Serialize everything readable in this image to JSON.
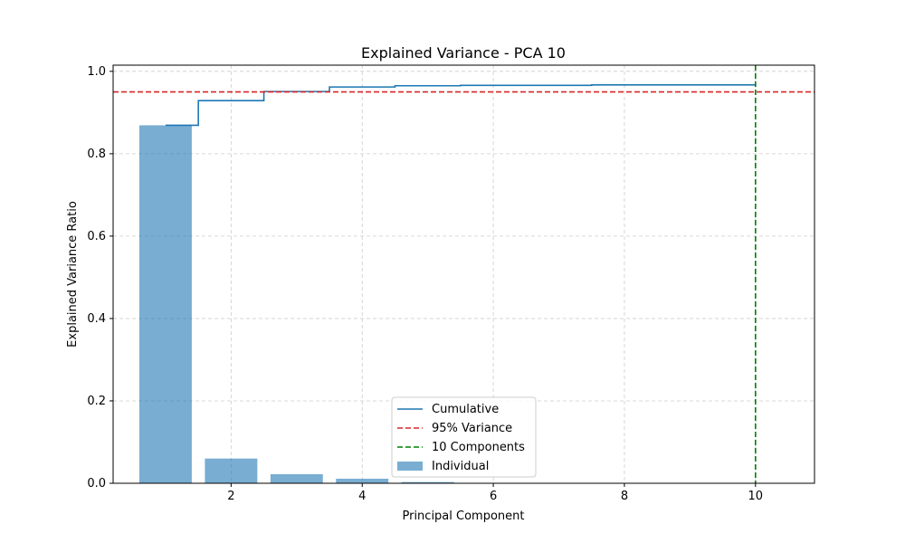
{
  "chart_data": {
    "type": "bar",
    "title": "Explained Variance - PCA 10",
    "xlabel": "Principal Component",
    "ylabel": "Explained Variance Ratio",
    "xlim": [
      0.2,
      10.9
    ],
    "ylim": [
      0,
      1.015
    ],
    "xticks": [
      2,
      4,
      6,
      8,
      10
    ],
    "yticks": [
      0.0,
      0.2,
      0.4,
      0.6,
      0.8,
      1.0
    ],
    "grid": true,
    "legend_position": "lower center",
    "x": [
      1,
      2,
      3,
      4,
      5,
      6,
      7,
      8,
      9,
      10
    ],
    "series": [
      {
        "name": "Individual",
        "kind": "bar",
        "color": "#1f77b4",
        "opacity": 0.6,
        "values": [
          0.869,
          0.06,
          0.022,
          0.011,
          0.003,
          0.001,
          0.001,
          0.0005,
          0.0003,
          0.0002
        ]
      },
      {
        "name": "Cumulative",
        "kind": "step",
        "color": "#1f77b4",
        "values": [
          0.869,
          0.929,
          0.951,
          0.962,
          0.965,
          0.966,
          0.966,
          0.967,
          0.967,
          0.967
        ]
      },
      {
        "name": "95% Variance",
        "kind": "hline",
        "color": "#d62728",
        "value": 0.95
      },
      {
        "name": "10 Components",
        "kind": "vline",
        "color": "#008000",
        "value": 10
      }
    ],
    "legend_order": [
      "Cumulative",
      "95% Variance",
      "10 Components",
      "Individual"
    ]
  }
}
